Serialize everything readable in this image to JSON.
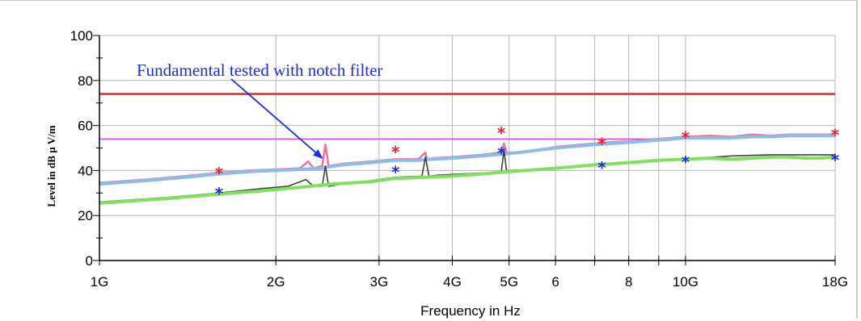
{
  "chart_data": {
    "type": "line",
    "xlabel": "Frequency in Hz",
    "ylabel": "Level in dB µ V/m",
    "x_scale": "log",
    "xlim": [
      1,
      18
    ],
    "ylim": [
      0,
      100
    ],
    "grid": true,
    "x_ticks": [
      {
        "value": 1,
        "label": "1G"
      },
      {
        "value": 2,
        "label": "2G"
      },
      {
        "value": 3,
        "label": "3G"
      },
      {
        "value": 4,
        "label": "4G"
      },
      {
        "value": 5,
        "label": "5G"
      },
      {
        "value": 6,
        "label": "6"
      },
      {
        "value": 8,
        "label": "8"
      },
      {
        "value": 10,
        "label": "10G"
      },
      {
        "value": 18,
        "label": "18G"
      }
    ],
    "x_grid_extra": [
      7,
      9
    ],
    "y_ticks": [
      0,
      20,
      40,
      60,
      80,
      100
    ],
    "limit_lines": [
      {
        "color": "#e8453c",
        "y": 74,
        "x": [
          1,
          18
        ]
      },
      {
        "color": "#e040e0",
        "y": 54,
        "x": [
          1,
          10
        ]
      }
    ],
    "series": [
      {
        "color": "#f0709a",
        "x": [
          1,
          1.2,
          1.4,
          1.6,
          1.8,
          2.0,
          2.2,
          2.27,
          2.32,
          2.4,
          2.43,
          2.46,
          2.6,
          2.9,
          3.2,
          3.5,
          3.6,
          3.62,
          3.7,
          4.0,
          4.5,
          4.85,
          4.9,
          4.95,
          5.3,
          6.0,
          7.0,
          7.4,
          8.0,
          9.0,
          10.0,
          11.0,
          12.0,
          13.0,
          14.0,
          15.0,
          16.0,
          17.0,
          18.0
        ],
        "y": [
          34.5,
          36,
          37.5,
          39,
          40,
          40.5,
          41,
          44,
          41,
          42,
          51.5,
          42,
          43,
          44,
          45,
          45,
          48,
          45,
          45.5,
          46,
          47,
          48,
          52,
          48,
          48,
          50.5,
          52,
          52.5,
          53,
          54,
          55,
          55.5,
          55,
          56,
          55.5,
          56,
          56,
          56,
          56
        ]
      },
      {
        "color": "#8cbcec",
        "x": [
          1,
          1.2,
          1.4,
          1.6,
          1.8,
          2.0,
          2.2,
          2.4,
          2.45,
          2.6,
          2.9,
          3.2,
          3.5,
          3.7,
          4.0,
          4.5,
          5.0,
          6.0,
          7.0,
          8.0,
          9.0,
          10.0,
          11.0,
          12.0,
          13.0,
          14.0,
          15.0,
          16.0,
          17.0,
          18.0
        ],
        "y": [
          34,
          35.5,
          37,
          38.5,
          39.5,
          40,
          40.5,
          41,
          41.5,
          42.5,
          43.5,
          44.5,
          44.5,
          45,
          45.5,
          46.5,
          47.5,
          50,
          51.5,
          52.5,
          53.5,
          54.5,
          54.5,
          54.5,
          55,
          55,
          55.5,
          55.5,
          55.5,
          55.5
        ]
      },
      {
        "color": "#404040",
        "x": [
          1,
          1.3,
          1.6,
          1.9,
          2.1,
          2.25,
          2.32,
          2.4,
          2.43,
          2.46,
          2.6,
          2.9,
          3.2,
          3.55,
          3.6,
          3.65,
          3.8,
          4.2,
          4.6,
          4.85,
          4.9,
          4.95,
          5.5,
          6.5,
          7.5,
          8.5,
          9.5,
          10.5,
          12.0,
          14.0,
          16.0,
          18.0
        ],
        "y": [
          26,
          28,
          30,
          32,
          33,
          36,
          33,
          33,
          42,
          33,
          34,
          35.5,
          37,
          37.5,
          46,
          37.5,
          38,
          38.5,
          39,
          39.5,
          49,
          40,
          40.5,
          42,
          43,
          44,
          45,
          45.5,
          46.5,
          47,
          47,
          47
        ]
      },
      {
        "color": "#80e060",
        "x": [
          1,
          1.3,
          1.6,
          1.9,
          2.2,
          2.5,
          2.9,
          3.2,
          3.6,
          4.0,
          4.5,
          5.0,
          6.0,
          7.0,
          8.0,
          9.0,
          10.0,
          11.0,
          12.0,
          13.0,
          14.0,
          15.0,
          16.0,
          17.0,
          18.0
        ],
        "y": [
          25.5,
          27.5,
          29.5,
          31,
          32.5,
          34,
          35,
          36.5,
          37,
          37.5,
          38.5,
          39.5,
          41,
          42.5,
          43.5,
          44.5,
          45,
          45.5,
          45,
          45.5,
          46,
          46,
          45.5,
          45.5,
          46
        ]
      }
    ],
    "markers": [
      {
        "symbol": "*",
        "color": "#e8222a",
        "x": 1.6,
        "y": 40.5
      },
      {
        "symbol": "*",
        "color": "#e8222a",
        "x": 3.2,
        "y": 50
      },
      {
        "symbol": "*",
        "color": "#e8222a",
        "x": 4.85,
        "y": 58.5
      },
      {
        "symbol": "*",
        "color": "#e8222a",
        "x": 7.2,
        "y": 53.5
      },
      {
        "symbol": "*",
        "color": "#e8222a",
        "x": 10.0,
        "y": 56.5
      },
      {
        "symbol": "*",
        "color": "#e8222a",
        "x": 18.0,
        "y": 57.5
      },
      {
        "symbol": "*",
        "color": "#1a2ee0",
        "x": 1.6,
        "y": 31.5
      },
      {
        "symbol": "*",
        "color": "#1a2ee0",
        "x": 3.2,
        "y": 41
      },
      {
        "symbol": "*",
        "color": "#1a2ee0",
        "x": 4.85,
        "y": 49.5
      },
      {
        "symbol": "*",
        "color": "#1a2ee0",
        "x": 7.2,
        "y": 43
      },
      {
        "symbol": "*",
        "color": "#1a2ee0",
        "x": 10.0,
        "y": 45.5
      },
      {
        "symbol": "*",
        "color": "#1a2ee0",
        "x": 18.0,
        "y": 46.5
      }
    ],
    "annotation": {
      "text": "Fundamental tested with notch filter",
      "color": "#1a2ee0",
      "arrow_to": {
        "x": 2.43,
        "y": 48
      }
    }
  }
}
